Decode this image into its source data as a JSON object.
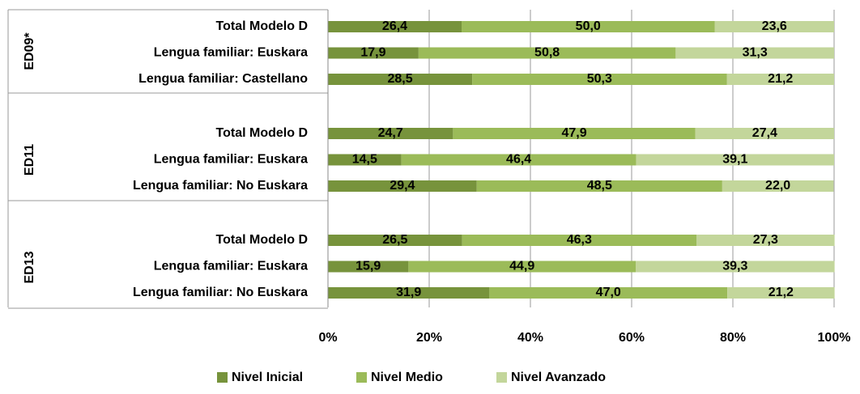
{
  "chart_data": {
    "type": "stacked_bar_h",
    "groups": [
      {
        "name": "ED09*",
        "categories": [
          "Total Modelo D",
          "Lengua familiar: Euskara",
          "Lengua familiar: Castellano"
        ]
      },
      {
        "name": "ED11",
        "categories": [
          "Total Modelo D",
          "Lengua familiar: Euskara",
          "Lengua familiar: No Euskara"
        ]
      },
      {
        "name": "ED13",
        "categories": [
          "Total Modelo D",
          "Lengua familiar: Euskara",
          "Lengua familiar: No Euskara"
        ]
      }
    ],
    "series": [
      {
        "name": "Nivel Inicial",
        "color": "#77933c",
        "values": [
          26.4,
          17.9,
          28.5,
          24.7,
          14.5,
          29.4,
          26.5,
          15.9,
          31.9
        ],
        "value_labels": [
          "26,4",
          "17,9",
          "28,5",
          "24,7",
          "14,5",
          "29,4",
          "26,5",
          "15,9",
          "31,9"
        ]
      },
      {
        "name": "Nivel Medio",
        "color": "#9bbb59",
        "values": [
          50.0,
          50.8,
          50.3,
          47.9,
          46.4,
          48.5,
          46.3,
          44.9,
          47.0
        ],
        "value_labels": [
          "50,0",
          "50,8",
          "50,3",
          "47,9",
          "46,4",
          "48,5",
          "46,3",
          "44,9",
          "47,0"
        ]
      },
      {
        "name": "Nivel Avanzado",
        "color": "#c3d69b",
        "values": [
          23.6,
          31.3,
          21.2,
          27.4,
          39.1,
          22.0,
          27.3,
          39.3,
          21.2
        ],
        "value_labels": [
          "23,6",
          "31,3",
          "21,2",
          "27,4",
          "39,1",
          "22,0",
          "27,3",
          "39,3",
          "21,2"
        ]
      }
    ],
    "xlim": [
      0,
      100
    ],
    "xticks": [
      {
        "value": 0,
        "label": "0%"
      },
      {
        "value": 20,
        "label": "20%"
      },
      {
        "value": 40,
        "label": "40%"
      },
      {
        "value": 60,
        "label": "60%"
      },
      {
        "value": 80,
        "label": "80%"
      },
      {
        "value": 100,
        "label": "100%"
      }
    ],
    "grid": true,
    "legend": "bottom"
  }
}
